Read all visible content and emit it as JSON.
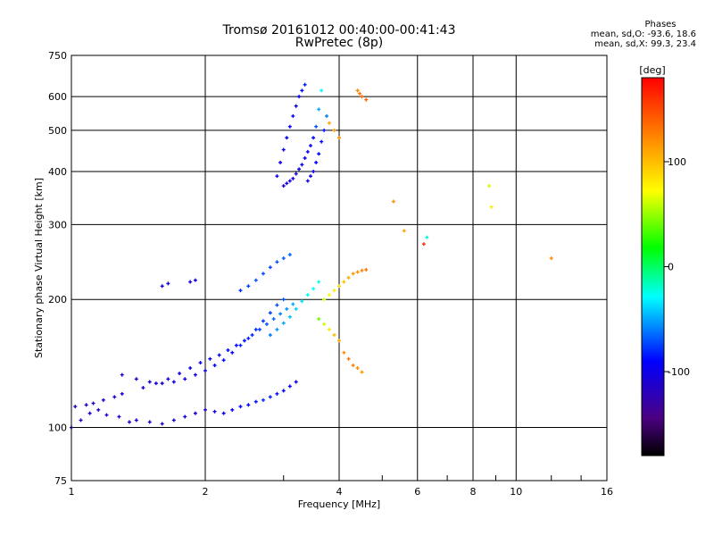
{
  "header": {
    "title_line1": "Tromsø 20161012 00:40:00-00:41:43",
    "title_line2": "RwPretec (8p)",
    "phases_title": "Phases",
    "phases_line1": "mean, sd,O: -93.6, 18.6",
    "phases_line2": "mean, sd,X:  99.3, 23.4"
  },
  "chart_data": {
    "type": "scatter",
    "title": "Tromsø 20161012 00:40:00-00:41:43",
    "subtitle": "RwPretec (8p)",
    "xlabel": "Frequency [MHz]",
    "ylabel": "Stationary phase Virtual Height [km]",
    "xscale": "log",
    "yscale": "log",
    "xlim": [
      1,
      16
    ],
    "ylim": [
      75,
      750
    ],
    "xticks": [
      1,
      2,
      4,
      6,
      8,
      10,
      16
    ],
    "yticks": [
      75,
      100,
      200,
      300,
      400,
      500,
      600,
      750
    ],
    "grid": true,
    "colorbar": {
      "label": "[deg]",
      "range": [
        -180,
        180
      ],
      "ticks": [
        -100,
        0,
        100
      ]
    },
    "series": [
      {
        "x": [
          1.0,
          1.05,
          1.1,
          1.15,
          1.2,
          1.28,
          1.35,
          1.4,
          1.5,
          1.6,
          1.7,
          1.8,
          1.9,
          2.0,
          2.1,
          2.2,
          2.3,
          2.4,
          2.5,
          2.6,
          2.7,
          2.8,
          2.9,
          3.0,
          3.1,
          3.2,
          1.02,
          1.08,
          1.12,
          1.18,
          1.25,
          1.3,
          1.45,
          1.55,
          1.65,
          1.75,
          1.85,
          1.95,
          2.05,
          2.15,
          2.25,
          2.35,
          2.45,
          2.55,
          2.65,
          2.75,
          2.85,
          2.95,
          3.05,
          3.15,
          1.3,
          1.4,
          1.5,
          1.6,
          1.7,
          1.8,
          1.9,
          2.0,
          2.1,
          2.2,
          2.3,
          2.4,
          2.5,
          2.6,
          2.7,
          2.8,
          2.9,
          3.0,
          1.6,
          1.65,
          1.85,
          1.9,
          2.4,
          2.5,
          2.6,
          2.7,
          2.8,
          2.9,
          3.0,
          3.1,
          2.8,
          2.9,
          3.0,
          3.1,
          3.2,
          3.3,
          3.4,
          3.5,
          3.6
        ],
        "y": [
          100,
          104,
          108,
          110,
          107,
          106,
          103,
          104,
          103,
          102,
          104,
          106,
          108,
          110,
          109,
          108,
          110,
          112,
          113,
          115,
          116,
          118,
          120,
          122,
          125,
          128,
          112,
          113,
          114,
          116,
          118,
          120,
          124,
          127,
          130,
          134,
          138,
          142,
          145,
          148,
          152,
          156,
          160,
          165,
          170,
          175,
          180,
          185,
          190,
          195,
          133,
          130,
          128,
          127,
          128,
          130,
          133,
          136,
          140,
          144,
          150,
          156,
          162,
          170,
          178,
          186,
          194,
          200,
          215,
          218,
          220,
          222,
          210,
          215,
          222,
          230,
          238,
          245,
          250,
          255,
          165,
          170,
          176,
          182,
          190,
          198,
          205,
          212,
          220
        ],
        "phase": [
          -110,
          -112,
          -108,
          -115,
          -110,
          -105,
          -110,
          -108,
          -112,
          -110,
          -106,
          -104,
          -108,
          -110,
          -100,
          -98,
          -95,
          -92,
          -90,
          -85,
          -80,
          -82,
          -88,
          -90,
          -95,
          -100,
          -120,
          -118,
          -115,
          -112,
          -110,
          -108,
          -106,
          -105,
          -104,
          -102,
          -100,
          -98,
          -95,
          -92,
          -90,
          -88,
          -85,
          -80,
          -75,
          -70,
          -65,
          -60,
          -55,
          -50,
          -115,
          -112,
          -110,
          -108,
          -105,
          -102,
          -100,
          -98,
          -95,
          -92,
          -88,
          -85,
          -82,
          -80,
          -78,
          -75,
          -72,
          -70,
          -105,
          -104,
          -103,
          -102,
          -80,
          -75,
          -70,
          -72,
          -74,
          -70,
          -68,
          -66,
          -60,
          -55,
          -50,
          -45,
          -40,
          -35,
          -30,
          -28,
          -25
        ]
      },
      {
        "x": [
          2.9,
          2.95,
          3.0,
          3.05,
          3.1,
          3.15,
          3.2,
          3.25,
          3.3,
          3.35,
          3.4,
          3.45,
          3.5,
          3.55,
          3.6,
          3.65,
          3.7,
          3.75,
          3.0,
          3.05,
          3.1,
          3.15,
          3.2,
          3.25,
          3.3,
          3.35,
          3.4,
          3.45,
          3.5,
          3.55,
          3.6,
          3.65
        ],
        "y": [
          390,
          420,
          450,
          480,
          510,
          540,
          570,
          600,
          620,
          640,
          380,
          390,
          400,
          420,
          440,
          470,
          500,
          540,
          370,
          375,
          380,
          385,
          395,
          405,
          415,
          430,
          445,
          460,
          480,
          510,
          560,
          620
        ],
        "phase": [
          -100,
          -102,
          -98,
          -96,
          -94,
          -95,
          -92,
          -90,
          -88,
          -85,
          -100,
          -98,
          -95,
          -92,
          -90,
          -88,
          -85,
          -60,
          -105,
          -104,
          -103,
          -102,
          -100,
          -98,
          -96,
          -94,
          -92,
          -90,
          -88,
          -70,
          -50,
          -30
        ]
      },
      {
        "x": [
          3.6,
          3.7,
          3.8,
          3.9,
          4.0,
          4.1,
          4.2,
          4.3,
          4.4,
          4.5,
          3.7,
          3.8,
          3.9,
          4.0,
          4.1,
          4.2,
          4.3,
          4.4,
          4.5,
          4.6,
          3.8,
          3.9,
          4.0,
          4.4,
          4.45,
          4.5,
          4.6,
          5.3,
          5.6,
          6.2,
          6.3,
          8.7,
          8.8,
          12.0
        ],
        "y": [
          180,
          175,
          170,
          165,
          160,
          150,
          145,
          140,
          138,
          135,
          200,
          205,
          210,
          215,
          220,
          225,
          230,
          232,
          234,
          235,
          520,
          500,
          480,
          620,
          610,
          600,
          590,
          340,
          290,
          270,
          280,
          370,
          330,
          250
        ],
        "phase": [
          40,
          60,
          80,
          100,
          110,
          120,
          130,
          125,
          120,
          115,
          60,
          70,
          80,
          90,
          100,
          110,
          115,
          120,
          125,
          130,
          110,
          115,
          120,
          125,
          130,
          135,
          140,
          120,
          110,
          160,
          -20,
          60,
          80,
          120
        ]
      }
    ]
  }
}
